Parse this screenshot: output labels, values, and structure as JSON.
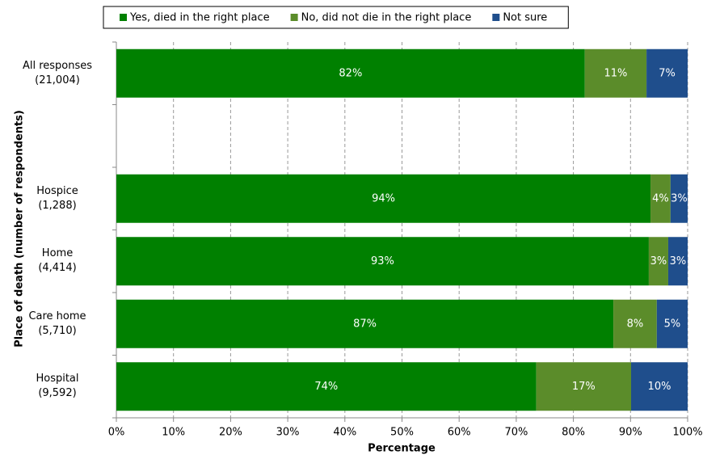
{
  "chart_data": {
    "type": "stacked-barh",
    "x_label": "Percentage",
    "y_label": "Place of death (number of respondents)",
    "categories": [
      "All responses\n(21,004)",
      null,
      "Hospice\n(1,288)",
      "Home\n(4,414)",
      "Care home\n(5,710)",
      "Hospital\n(9,592)"
    ],
    "series": [
      {
        "name": "Yes, died in the right place",
        "color": "#008000",
        "values": [
          82.0,
          null,
          93.5,
          93.2,
          87.0,
          73.5
        ],
        "value_labels": [
          "82%",
          null,
          "94%",
          "93%",
          "87%",
          "74%"
        ]
      },
      {
        "name": "No, did not die in the right place",
        "color": "#5b8c2a",
        "values": [
          10.8,
          null,
          3.5,
          3.4,
          7.6,
          16.6
        ],
        "value_labels": [
          "11%",
          null,
          "4%",
          "3%",
          "8%",
          "17%"
        ]
      },
      {
        "name": "Not sure",
        "color": "#1f4e8c",
        "values": [
          7.2,
          null,
          3.0,
          3.4,
          5.4,
          9.9
        ],
        "value_labels": [
          "7%",
          null,
          "3%",
          "3%",
          "5%",
          "10%"
        ]
      }
    ],
    "xlim": [
      0,
      100
    ],
    "xticks": [
      {
        "value": 0,
        "label": "0%"
      },
      {
        "value": 10,
        "label": "10%"
      },
      {
        "value": 20,
        "label": "20%"
      },
      {
        "value": 30,
        "label": "30%"
      },
      {
        "value": 40,
        "label": "40%"
      },
      {
        "value": 50,
        "label": "50%"
      },
      {
        "value": 60,
        "label": "60%"
      },
      {
        "value": 70,
        "label": "70%"
      },
      {
        "value": 80,
        "label": "80%"
      },
      {
        "value": 90,
        "label": "90%"
      },
      {
        "value": 100,
        "label": "100%"
      }
    ],
    "grid": true,
    "legend": "top"
  }
}
